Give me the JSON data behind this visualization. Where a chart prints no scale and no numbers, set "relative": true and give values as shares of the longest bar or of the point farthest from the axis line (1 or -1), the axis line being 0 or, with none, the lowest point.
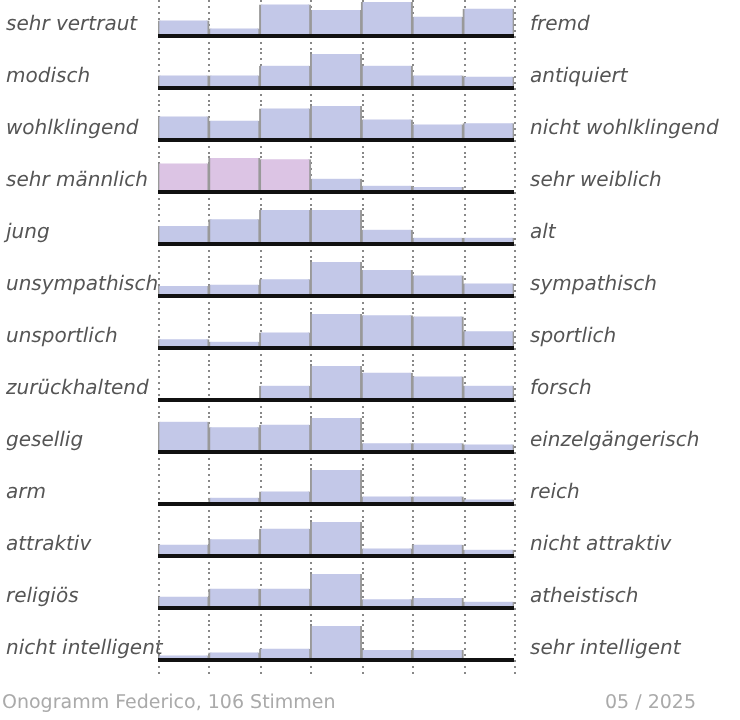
{
  "chart_data": [
    {
      "type": "bar",
      "ylabel": "sehr vertraut",
      "y2label": "fremd",
      "relative": true,
      "grid": "x",
      "categories": [
        null,
        null,
        null,
        null,
        null,
        null,
        null
      ],
      "values": [
        0.42,
        0.17,
        0.92,
        0.75,
        1,
        0.54,
        0.79
      ],
      "colors": [
        "#c3c8e8",
        "#c3c8e8",
        "#c3c8e8",
        "#c3c8e8",
        "#c3c8e8",
        "#c3c8e8",
        "#c3c8e8"
      ]
    },
    {
      "type": "bar",
      "ylabel": "modisch",
      "y2label": "antiquiert",
      "relative": true,
      "grid": "x",
      "categories": [
        null,
        null,
        null,
        null,
        null,
        null,
        null
      ],
      "values": [
        0.33,
        0.33,
        0.63,
        1,
        0.63,
        0.33,
        0.29
      ],
      "colors": [
        "#c3c8e8",
        "#c3c8e8",
        "#c3c8e8",
        "#c3c8e8",
        "#c3c8e8",
        "#c3c8e8",
        "#c3c8e8"
      ]
    },
    {
      "type": "bar",
      "ylabel": "wohlklingend",
      "y2label": "nicht wohlklingend",
      "relative": true,
      "grid": "x",
      "categories": [
        null,
        null,
        null,
        null,
        null,
        null,
        null
      ],
      "values": [
        0.67,
        0.54,
        0.92,
        1,
        0.58,
        0.42,
        0.46
      ],
      "colors": [
        "#c3c8e8",
        "#c3c8e8",
        "#c3c8e8",
        "#c3c8e8",
        "#c3c8e8",
        "#c3c8e8",
        "#c3c8e8"
      ]
    },
    {
      "type": "bar",
      "ylabel": "sehr männlich",
      "y2label": "sehr weiblich",
      "relative": true,
      "grid": "x",
      "categories": [
        null,
        null,
        null,
        null,
        null,
        null,
        null
      ],
      "values": [
        0.83,
        1,
        0.96,
        0.35,
        0.13,
        0.09,
        0
      ],
      "colors": [
        "#dcc4e4",
        "#dcc4e4",
        "#dcc4e4",
        "#c3c8e8",
        "#c3c8e8",
        "#c3c8e8",
        "#c3c8e8"
      ]
    },
    {
      "type": "bar",
      "ylabel": "jung",
      "y2label": "alt",
      "relative": true,
      "grid": "x",
      "categories": [
        null,
        null,
        null,
        null,
        null,
        null,
        null
      ],
      "values": [
        0.5,
        0.71,
        1,
        1,
        0.38,
        0.13,
        0.13
      ],
      "colors": [
        "#c3c8e8",
        "#c3c8e8",
        "#c3c8e8",
        "#c3c8e8",
        "#c3c8e8",
        "#c3c8e8",
        "#c3c8e8"
      ]
    },
    {
      "type": "bar",
      "ylabel": "unsympathisch",
      "y2label": "sympathisch",
      "relative": true,
      "grid": "x",
      "categories": [
        null,
        null,
        null,
        null,
        null,
        null,
        null
      ],
      "values": [
        0.25,
        0.29,
        0.46,
        1,
        0.75,
        0.58,
        0.33
      ],
      "colors": [
        "#c3c8e8",
        "#c3c8e8",
        "#c3c8e8",
        "#c3c8e8",
        "#c3c8e8",
        "#c3c8e8",
        "#c3c8e8"
      ]
    },
    {
      "type": "bar",
      "ylabel": "unsportlich",
      "y2label": "sportlich",
      "relative": true,
      "grid": "x",
      "categories": [
        null,
        null,
        null,
        null,
        null,
        null,
        null
      ],
      "values": [
        0.21,
        0.13,
        0.42,
        1,
        0.96,
        0.92,
        0.46
      ],
      "colors": [
        "#c3c8e8",
        "#c3c8e8",
        "#c3c8e8",
        "#c3c8e8",
        "#c3c8e8",
        "#c3c8e8",
        "#c3c8e8"
      ]
    },
    {
      "type": "bar",
      "ylabel": "zurückhaltend",
      "y2label": "forsch",
      "relative": true,
      "grid": "x",
      "categories": [
        null,
        null,
        null,
        null,
        null,
        null,
        null
      ],
      "values": [
        0,
        0,
        0.38,
        1,
        0.79,
        0.67,
        0.38
      ],
      "colors": [
        "#c3c8e8",
        "#c3c8e8",
        "#c3c8e8",
        "#c3c8e8",
        "#c3c8e8",
        "#c3c8e8",
        "#c3c8e8"
      ]
    },
    {
      "type": "bar",
      "ylabel": "gesellig",
      "y2label": "einzelgängerisch",
      "relative": true,
      "grid": "x",
      "categories": [
        null,
        null,
        null,
        null,
        null,
        null,
        null
      ],
      "values": [
        0.88,
        0.71,
        0.79,
        1,
        0.21,
        0.21,
        0.17
      ],
      "colors": [
        "#c3c8e8",
        "#c3c8e8",
        "#c3c8e8",
        "#c3c8e8",
        "#c3c8e8",
        "#c3c8e8",
        "#c3c8e8"
      ]
    },
    {
      "type": "bar",
      "ylabel": "arm",
      "y2label": "reich",
      "relative": true,
      "grid": "x",
      "categories": [
        null,
        null,
        null,
        null,
        null,
        null,
        null
      ],
      "values": [
        0,
        0.13,
        0.33,
        1,
        0.17,
        0.17,
        0.08
      ],
      "colors": [
        "#c3c8e8",
        "#c3c8e8",
        "#c3c8e8",
        "#c3c8e8",
        "#c3c8e8",
        "#c3c8e8",
        "#c3c8e8"
      ]
    },
    {
      "type": "bar",
      "ylabel": "attraktiv",
      "y2label": "nicht attraktiv",
      "relative": true,
      "grid": "x",
      "categories": [
        null,
        null,
        null,
        null,
        null,
        null,
        null
      ],
      "values": [
        0.29,
        0.46,
        0.79,
        1,
        0.17,
        0.29,
        0.13
      ],
      "colors": [
        "#c3c8e8",
        "#c3c8e8",
        "#c3c8e8",
        "#c3c8e8",
        "#c3c8e8",
        "#c3c8e8",
        "#c3c8e8"
      ]
    },
    {
      "type": "bar",
      "ylabel": "religiös",
      "y2label": "atheistisch",
      "relative": true,
      "grid": "x",
      "categories": [
        null,
        null,
        null,
        null,
        null,
        null,
        null
      ],
      "values": [
        0.29,
        0.54,
        0.54,
        1,
        0.21,
        0.25,
        0.13
      ],
      "colors": [
        "#c3c8e8",
        "#c3c8e8",
        "#c3c8e8",
        "#c3c8e8",
        "#c3c8e8",
        "#c3c8e8",
        "#c3c8e8"
      ]
    },
    {
      "type": "bar",
      "ylabel": "nicht intelligent",
      "y2label": "sehr intelligent",
      "relative": true,
      "grid": "x",
      "categories": [
        null,
        null,
        null,
        null,
        null,
        null,
        null
      ],
      "values": [
        0.08,
        0.17,
        0.29,
        1,
        0.25,
        0.25,
        0
      ],
      "colors": [
        "#c3c8e8",
        "#c3c8e8",
        "#c3c8e8",
        "#c3c8e8",
        "#c3c8e8",
        "#c3c8e8",
        "#c3c8e8"
      ],
      "annotations": [
        "Onogramm Federico, 106 Stimmen",
        "05 / 2025"
      ]
    }
  ]
}
